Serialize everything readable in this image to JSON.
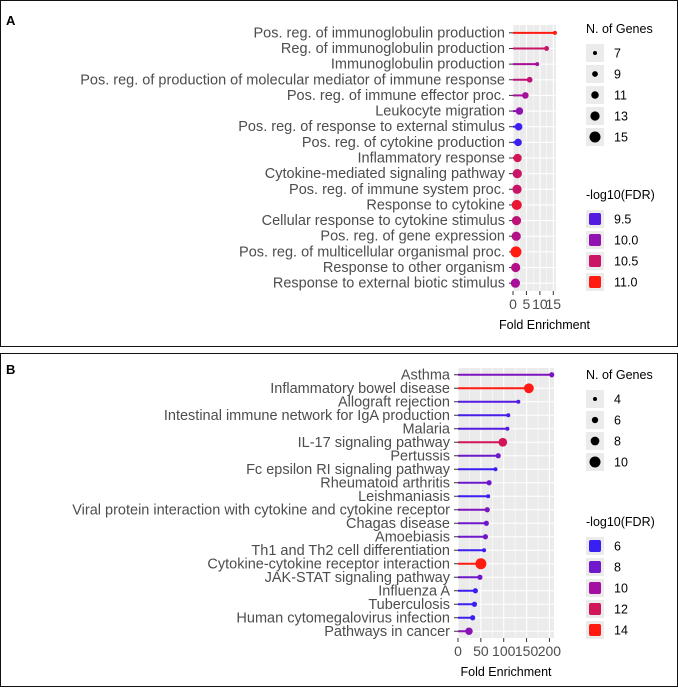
{
  "colors": {
    "panel_bg": "#ebebeb",
    "grid": "#ffffff",
    "text": "#4d4d4d"
  },
  "chart_data": [
    {
      "type": "lollipop",
      "panel_label": "A",
      "xlabel": "Fold Enrichment",
      "xlim": [
        0,
        16
      ],
      "xticks": [
        0,
        5,
        10,
        15
      ],
      "xtick_labels": [
        "0",
        "5",
        "10",
        "15"
      ],
      "categories": [
        "Pos. reg. of immunoglobulin production",
        "Reg. of immunoglobulin production",
        "Immunoglobulin production",
        "Pos. reg. of production of molecular mediator of immune response",
        "Pos. reg. of immune effector proc.",
        "Leukocyte migration",
        "Pos. reg. of response to external stimulus",
        "Pos. reg. of cytokine production",
        "Inflammatory response",
        "Cytokine-mediated signaling pathway",
        "Pos. reg. of immune system proc.",
        "Response to cytokine",
        "Cellular response to cytokine stimulus",
        "Pos. reg. of gene expression",
        "Pos. reg. of multicellular organismal proc.",
        "Response to other organism",
        "Response to external biotic stimulus"
      ],
      "fold_enrichment": [
        15.6,
        12.5,
        9.0,
        6.2,
        4.6,
        2.4,
        2.1,
        1.9,
        1.7,
        1.6,
        1.5,
        1.4,
        1.3,
        1.2,
        1.1,
        1.0,
        0.9
      ],
      "n_genes": [
        7,
        8,
        7,
        9,
        10,
        11,
        11,
        11,
        12,
        13,
        13,
        14,
        13,
        13,
        15,
        13,
        13
      ],
      "neg_log10_fdr": [
        11.0,
        10.5,
        10.2,
        10.4,
        10.2,
        10.0,
        9.3,
        9.3,
        10.6,
        10.5,
        10.5,
        10.8,
        10.4,
        10.3,
        11.0,
        10.3,
        10.2
      ],
      "size_legend": {
        "title": "N. of Genes",
        "values": [
          7,
          9,
          11,
          13,
          15
        ],
        "labels": [
          "7",
          "9",
          "11",
          "13",
          "15"
        ],
        "domain": [
          7,
          15
        ]
      },
      "color_legend": {
        "title": "-log10(FDR)",
        "values": [
          9.5,
          10.0,
          10.5,
          11.0
        ],
        "labels": [
          "9.5",
          "10.0",
          "10.5",
          "11.0"
        ],
        "domain": [
          9.3,
          11.0
        ],
        "low_color": "#3a1ff2",
        "mid_color": "#a40fa2",
        "high_color": "#ff1a12"
      }
    },
    {
      "type": "lollipop",
      "panel_label": "B",
      "xlabel": "Fold Enrichment",
      "xlim": [
        0,
        210
      ],
      "xticks": [
        0,
        50,
        100,
        150,
        200
      ],
      "xtick_labels": [
        "0",
        "50",
        "100",
        "150",
        "200"
      ],
      "categories": [
        "Asthma",
        "Inflammatory bowel disease",
        "Allograft rejection",
        "Intestinal immune network for IgA production",
        "Malaria",
        "IL-17 signaling pathway",
        "Pertussis",
        "Fc epsilon RI signaling pathway",
        "Rheumatoid arthritis",
        "Leishmaniasis",
        "Viral protein interaction with cytokine and cytokine receptor",
        "Chagas disease",
        "Amoebiasis",
        "Th1 and Th2 cell differentiation",
        "Cytokine-cytokine receptor interaction",
        "JAK-STAT signaling pathway",
        "Influenza A",
        "Tuberculosis",
        "Human cytomegalovirus infection",
        "Pathways in cancer"
      ],
      "fold_enrichment": [
        205,
        155,
        132,
        110,
        108,
        98,
        88,
        82,
        68,
        66,
        64,
        62,
        60,
        57,
        50,
        48,
        38,
        36,
        32,
        24
      ],
      "n_genes": [
        5,
        9,
        4,
        4,
        4,
        8,
        5,
        4,
        5,
        4,
        5,
        5,
        5,
        4,
        10,
        5,
        5,
        5,
        5,
        7
      ],
      "neg_log10_fdr": [
        8.5,
        14.0,
        7.0,
        6.5,
        7.0,
        12.0,
        8.0,
        6.0,
        8.0,
        6.0,
        8.5,
        8.0,
        8.0,
        6.0,
        14.0,
        8.0,
        6.0,
        6.0,
        6.0,
        9.0
      ],
      "size_legend": {
        "title": "N. of Genes",
        "values": [
          4,
          6,
          8,
          10
        ],
        "labels": [
          "4",
          "6",
          "8",
          "10"
        ],
        "domain": [
          4,
          10
        ]
      },
      "color_legend": {
        "title": "-log10(FDR)",
        "values": [
          6,
          8,
          10,
          12,
          14
        ],
        "labels": [
          "6",
          "8",
          "10",
          "12",
          "14"
        ],
        "domain": [
          6,
          14
        ],
        "low_color": "#3a1ff2",
        "mid_color": "#a40fa2",
        "high_color": "#ff1a12"
      }
    }
  ]
}
